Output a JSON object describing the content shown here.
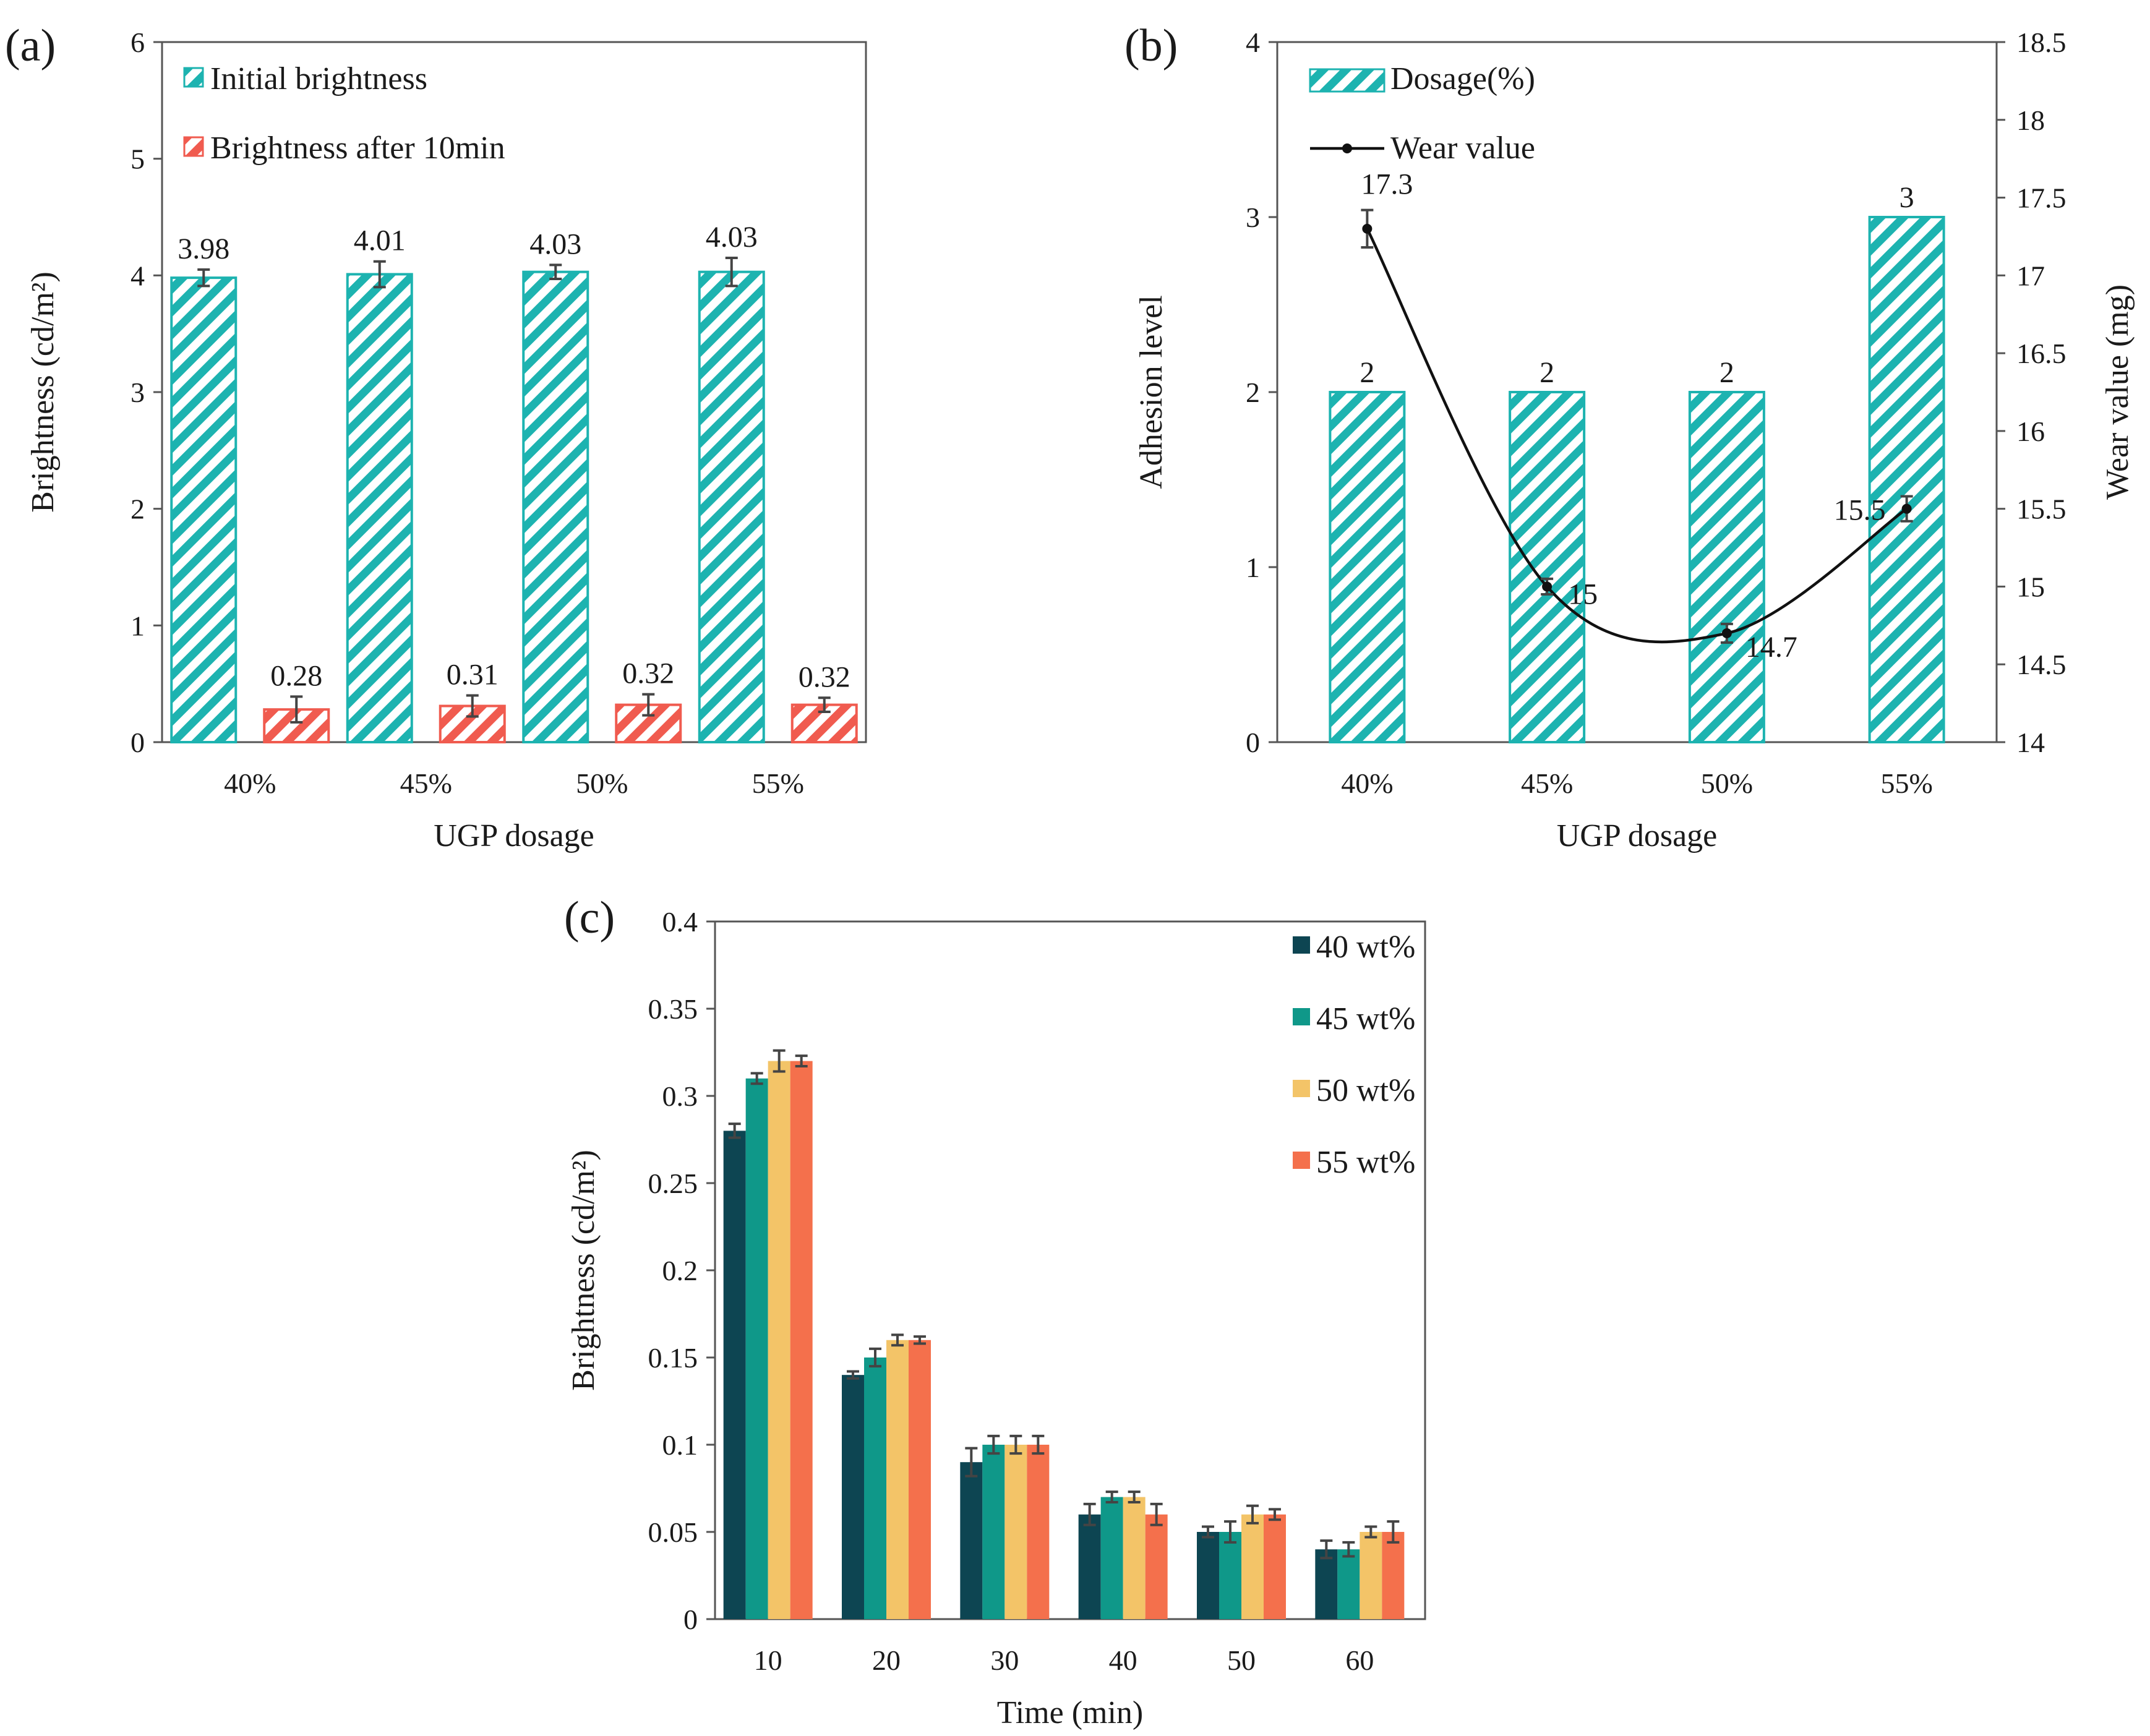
{
  "chart_data": [
    {
      "panel": "a",
      "panel_label": "(a)",
      "type": "bar",
      "categories": [
        "40%",
        "45%",
        "50%",
        "55%"
      ],
      "xlabel": "UGP dosage",
      "ylabel": "Brightness (cd/m²)",
      "ylim": [
        0,
        6
      ],
      "yticks": [
        0,
        1,
        2,
        3,
        4,
        5,
        6
      ],
      "legend_position": "top-left",
      "series": [
        {
          "name": "Initial brightness",
          "values": [
            3.98,
            4.01,
            4.03,
            4.03
          ],
          "errors": [
            0.07,
            0.11,
            0.06,
            0.12
          ],
          "labels": [
            "3.98",
            "4.01",
            "4.03",
            "4.03"
          ],
          "color": "#1db3b0",
          "pattern": "hatched"
        },
        {
          "name": "Brightness after 10min",
          "values": [
            0.28,
            0.31,
            0.32,
            0.32
          ],
          "errors": [
            0.11,
            0.09,
            0.09,
            0.06
          ],
          "labels": [
            "0.28",
            "0.31",
            "0.32",
            "0.32"
          ],
          "color": "#f05b4f",
          "pattern": "hatched"
        }
      ]
    },
    {
      "panel": "b",
      "panel_label": "(b)",
      "type": "bar",
      "categories": [
        "40%",
        "45%",
        "50%",
        "55%"
      ],
      "xlabel": "UGP dosage",
      "ylabel": "Adhesion level",
      "y2label": "Wear value (mg)",
      "ylim": [
        0,
        4
      ],
      "yticks": [
        0,
        1,
        2,
        3,
        4
      ],
      "y2lim": [
        14,
        18.5
      ],
      "y2ticks": [
        "14",
        "14.5",
        "15",
        "15.5",
        "16",
        "16.5",
        "17",
        "17.5",
        "18",
        "18.5"
      ],
      "legend_position": "top-left",
      "bars": {
        "name": "Dosage(%)",
        "values": [
          2,
          2,
          2,
          3
        ],
        "labels": [
          "2",
          "2",
          "2",
          "3"
        ],
        "color": "#1db3b0",
        "pattern": "hatched"
      },
      "line": {
        "name": "Wear value",
        "axis": "right",
        "values": [
          17.3,
          15.0,
          14.7,
          15.5
        ],
        "errors": [
          0.12,
          0.05,
          0.06,
          0.08
        ],
        "labels": [
          "17.3",
          "15",
          "14.7",
          "15.5"
        ],
        "color": "#111111",
        "smooth": true
      }
    },
    {
      "panel": "c",
      "panel_label": "(c)",
      "type": "bar",
      "categories": [
        "10",
        "20",
        "30",
        "40",
        "50",
        "60"
      ],
      "xlabel": "Time (min)",
      "ylabel": "Brightness (cd/m²)",
      "ylim": [
        0,
        0.4
      ],
      "yticks": [
        "0",
        "0.05",
        "0.1",
        "0.15",
        "0.2",
        "0.25",
        "0.3",
        "0.35",
        "0.4"
      ],
      "legend_position": "top-right",
      "series": [
        {
          "name": "40 wt%",
          "color": "#0d4552",
          "values": [
            0.28,
            0.14,
            0.09,
            0.06,
            0.05,
            0.04
          ],
          "errors": [
            0.004,
            0.002,
            0.008,
            0.006,
            0.003,
            0.005
          ]
        },
        {
          "name": "45 wt%",
          "color": "#0f9889",
          "values": [
            0.31,
            0.15,
            0.1,
            0.07,
            0.05,
            0.04
          ],
          "errors": [
            0.003,
            0.005,
            0.005,
            0.003,
            0.006,
            0.004
          ]
        },
        {
          "name": "50 wt%",
          "color": "#f3c468",
          "values": [
            0.32,
            0.16,
            0.1,
            0.07,
            0.06,
            0.05
          ],
          "errors": [
            0.006,
            0.003,
            0.005,
            0.003,
            0.005,
            0.003
          ]
        },
        {
          "name": "55 wt%",
          "color": "#f4704c",
          "values": [
            0.32,
            0.16,
            0.1,
            0.06,
            0.06,
            0.05
          ],
          "errors": [
            0.003,
            0.002,
            0.005,
            0.006,
            0.003,
            0.006
          ]
        }
      ]
    }
  ]
}
